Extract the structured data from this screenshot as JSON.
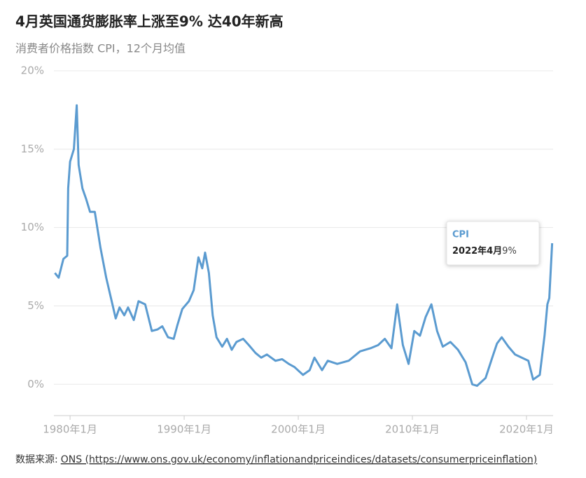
{
  "chart_data": {
    "type": "line",
    "title": "4月英国通货膨胀率上涨至9% 达40年新高",
    "subtitle": "消费者价格指数 CPI，12个月均值",
    "x": [
      "1978-09",
      "1979-01",
      "1979-06",
      "1979-10",
      "1979-11",
      "1980-01",
      "1980-05",
      "1980-08",
      "1980-10",
      "1981-02",
      "1981-06",
      "1981-10",
      "1982-03",
      "1982-09",
      "1983-03",
      "1983-08",
      "1984-01",
      "1984-05",
      "1984-10",
      "1985-02",
      "1985-08",
      "1986-01",
      "1986-08",
      "1987-03",
      "1987-09",
      "1988-02",
      "1988-08",
      "1989-02",
      "1989-06",
      "1989-11",
      "1990-06",
      "1990-11",
      "1991-04",
      "1991-08",
      "1991-11",
      "1992-03",
      "1992-07",
      "1992-11",
      "1993-05",
      "1993-10",
      "1994-03",
      "1994-08",
      "1995-03",
      "1995-09",
      "1996-04",
      "1996-10",
      "1997-04",
      "1998-01",
      "1998-08",
      "1999-03",
      "1999-09",
      "2000-06",
      "2001-01",
      "2001-06",
      "2002-02",
      "2002-08",
      "2003-06",
      "2004-06",
      "2005-06",
      "2006-05",
      "2007-01",
      "2007-08",
      "2008-03",
      "2008-09",
      "2009-03",
      "2009-09",
      "2010-03",
      "2010-09",
      "2011-03",
      "2011-09",
      "2012-03",
      "2012-09",
      "2013-05",
      "2014-01",
      "2014-09",
      "2015-04",
      "2015-09",
      "2016-06",
      "2017-01",
      "2017-06",
      "2017-11",
      "2018-06",
      "2019-01",
      "2019-08",
      "2020-03",
      "2020-08",
      "2021-03",
      "2021-08",
      "2021-11",
      "2022-01",
      "2022-04"
    ],
    "series": [
      {
        "name": "CPI",
        "color": "#5b9bd0",
        "values": [
          7.1,
          6.8,
          8.0,
          8.2,
          12.5,
          14.2,
          15.0,
          17.8,
          14.0,
          12.5,
          11.8,
          11.0,
          11.0,
          8.7,
          6.8,
          5.5,
          4.2,
          4.9,
          4.4,
          4.9,
          4.1,
          5.3,
          5.1,
          3.4,
          3.5,
          3.7,
          3.0,
          2.9,
          3.8,
          4.8,
          5.3,
          6.0,
          8.1,
          7.4,
          8.4,
          7.1,
          4.4,
          3.0,
          2.4,
          2.9,
          2.2,
          2.7,
          2.9,
          2.5,
          2.0,
          1.7,
          1.9,
          1.5,
          1.6,
          1.3,
          1.1,
          0.6,
          0.9,
          1.7,
          0.9,
          1.5,
          1.3,
          1.5,
          2.1,
          2.3,
          2.5,
          2.9,
          2.3,
          5.1,
          2.5,
          1.3,
          3.4,
          3.1,
          4.3,
          5.1,
          3.4,
          2.4,
          2.7,
          2.2,
          1.4,
          0.0,
          -0.1,
          0.4,
          1.7,
          2.6,
          3.0,
          2.4,
          1.9,
          1.7,
          1.5,
          0.3,
          0.6,
          3.1,
          5.1,
          5.5,
          9.0
        ]
      }
    ],
    "xlim": [
      "1978-08",
      "2022-05"
    ],
    "xticks": [
      {
        "value": "1980-01",
        "label": "1980年1月"
      },
      {
        "value": "1990-01",
        "label": "1990年1月"
      },
      {
        "value": "2000-01",
        "label": "2000年1月"
      },
      {
        "value": "2010-01",
        "label": "2010年1月"
      },
      {
        "value": "2020-01",
        "label": "2020年1月"
      }
    ],
    "ylim": [
      -2,
      20
    ],
    "yticks": [
      {
        "value": 0,
        "label": "0%"
      },
      {
        "value": 5,
        "label": "5%"
      },
      {
        "value": 10,
        "label": "10%"
      },
      {
        "value": 15,
        "label": "15%"
      },
      {
        "value": 20,
        "label": "20%"
      }
    ],
    "grid": true,
    "tooltip": {
      "point": "2022年4月",
      "value": "9%"
    },
    "source": {
      "label": "数据来源:",
      "link": "ONS (https://www.ons.gov.uk/economy/inflationandpriceindices/datasets/consumerpriceinflation)"
    }
  }
}
